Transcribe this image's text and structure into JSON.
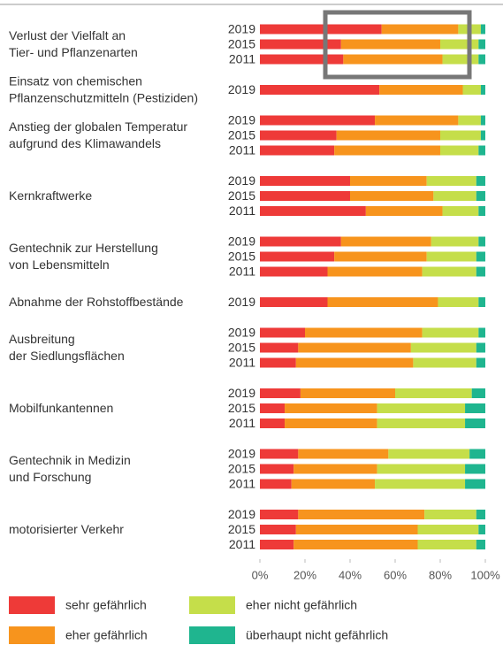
{
  "chart_data": {
    "type": "stacked-bar-horizontal",
    "series": [
      {
        "name": "sehr gefährlich",
        "color": "#ee3a38"
      },
      {
        "name": "eher gefährlich",
        "color": "#f7941d"
      },
      {
        "name": "eher nicht gefährlich",
        "color": "#c5de4a"
      },
      {
        "name": "überhaupt nicht gefährlich",
        "color": "#1fb58f"
      }
    ],
    "groups": [
      {
        "label": [
          "Verlust der Vielfalt an",
          "Tier- und Pflanzenarten"
        ],
        "bars": [
          {
            "year": "2019",
            "values": [
              54,
              34,
              10,
              2
            ]
          },
          {
            "year": "2015",
            "values": [
              36,
              44,
              17,
              3
            ]
          },
          {
            "year": "2011",
            "values": [
              37,
              44,
              16,
              3
            ]
          }
        ]
      },
      {
        "label": [
          "Einsatz von chemischen",
          "Pflanzenschutzmitteln (Pestiziden)"
        ],
        "bars": [
          {
            "year": "2019",
            "values": [
              53,
              37,
              8,
              2
            ]
          }
        ]
      },
      {
        "label": [
          "Anstieg der globalen Temperatur",
          "aufgrund des Klimawandels"
        ],
        "bars": [
          {
            "year": "2019",
            "values": [
              51,
              37,
              10,
              2
            ]
          },
          {
            "year": "2015",
            "values": [
              34,
              46,
              18,
              2
            ]
          },
          {
            "year": "2011",
            "values": [
              33,
              47,
              17,
              3
            ]
          }
        ]
      },
      {
        "label": [
          "Kernkraftwerke"
        ],
        "bars": [
          {
            "year": "2019",
            "values": [
              40,
              34,
              22,
              4
            ]
          },
          {
            "year": "2015",
            "values": [
              40,
              37,
              19,
              4
            ]
          },
          {
            "year": "2011",
            "values": [
              47,
              34,
              16,
              3
            ]
          }
        ]
      },
      {
        "label": [
          "Gentechnik zur Herstellung",
          "von Lebensmitteln"
        ],
        "bars": [
          {
            "year": "2019",
            "values": [
              36,
              40,
              21,
              3
            ]
          },
          {
            "year": "2015",
            "values": [
              33,
              41,
              22,
              4
            ]
          },
          {
            "year": "2011",
            "values": [
              30,
              42,
              24,
              4
            ]
          }
        ]
      },
      {
        "label": [
          "Abnahme der Rohstoffbestände"
        ],
        "bars": [
          {
            "year": "2019",
            "values": [
              30,
              49,
              18,
              3
            ]
          }
        ]
      },
      {
        "label": [
          "Ausbreitung",
          "der Siedlungsflächen"
        ],
        "bars": [
          {
            "year": "2019",
            "values": [
              20,
              52,
              25,
              3
            ]
          },
          {
            "year": "2015",
            "values": [
              17,
              50,
              29,
              4
            ]
          },
          {
            "year": "2011",
            "values": [
              16,
              52,
              28,
              4
            ]
          }
        ]
      },
      {
        "label": [
          "Mobilfunkantennen"
        ],
        "bars": [
          {
            "year": "2019",
            "values": [
              18,
              42,
              34,
              6
            ]
          },
          {
            "year": "2015",
            "values": [
              11,
              41,
              39,
              9
            ]
          },
          {
            "year": "2011",
            "values": [
              11,
              41,
              39,
              9
            ]
          }
        ]
      },
      {
        "label": [
          "Gentechnik in Medizin",
          "und Forschung"
        ],
        "bars": [
          {
            "year": "2019",
            "values": [
              17,
              40,
              36,
              7
            ]
          },
          {
            "year": "2015",
            "values": [
              15,
              37,
              39,
              9
            ]
          },
          {
            "year": "2011",
            "values": [
              14,
              37,
              40,
              9
            ]
          }
        ]
      },
      {
        "label": [
          "motorisierter Verkehr"
        ],
        "bars": [
          {
            "year": "2019",
            "values": [
              17,
              56,
              23,
              4
            ]
          },
          {
            "year": "2015",
            "values": [
              16,
              54,
              27,
              3
            ]
          },
          {
            "year": "2011",
            "values": [
              15,
              55,
              26,
              4
            ]
          }
        ]
      }
    ],
    "xlim": [
      0,
      100
    ],
    "xticks": [
      {
        "value": 0,
        "label": "0%"
      },
      {
        "value": 20,
        "label": "20%"
      },
      {
        "value": 40,
        "label": "40%"
      },
      {
        "value": 60,
        "label": "60%"
      },
      {
        "value": 80,
        "label": "80%"
      },
      {
        "value": 100,
        "label": "100%"
      }
    ]
  }
}
